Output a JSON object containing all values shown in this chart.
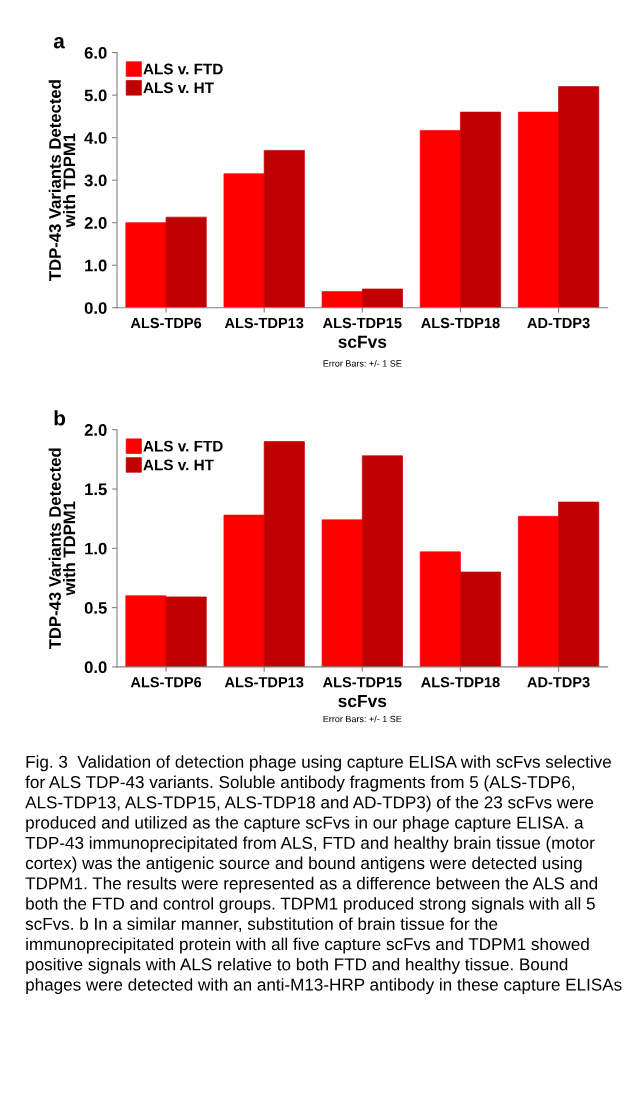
{
  "chart_data": [
    {
      "type": "bar",
      "title": "a",
      "xlabel": "scFvs",
      "ylabel": "TDP-43 Variants Detected\nwith TDPM1",
      "categories": [
        "ALS-TDP6",
        "ALS-TDP13",
        "ALS-TDP15",
        "ALS-TDP18",
        "AD-TDP3"
      ],
      "series": [
        {
          "name": "ALS v. FTD",
          "color": "#ff0000",
          "values": [
            2.0,
            3.15,
            0.38,
            4.17,
            4.6
          ]
        },
        {
          "name": "ALS v. HT",
          "color": "#c00000",
          "values": [
            2.13,
            3.7,
            0.44,
            4.6,
            5.2
          ]
        }
      ],
      "ylim": [
        0,
        6
      ],
      "yticks": [
        {
          "value": 0,
          "label": "0.0"
        },
        {
          "value": 1,
          "label": "1.0"
        },
        {
          "value": 2,
          "label": "2.0"
        },
        {
          "value": 3,
          "label": "3.0"
        },
        {
          "value": 4,
          "label": "4.0"
        },
        {
          "value": 5,
          "label": "5.0"
        },
        {
          "value": 6,
          "label": "6.0"
        }
      ],
      "legend": "top left",
      "grid": false,
      "annotations": [
        "Error Bars: +/- 1 SE"
      ]
    },
    {
      "type": "bar",
      "title": "b",
      "xlabel": "scFvs",
      "ylabel": "TDP-43 Variants Detected\nwith TDPM1",
      "categories": [
        "ALS-TDP6",
        "ALS-TDP13",
        "ALS-TDP15",
        "ALS-TDP18",
        "AD-TDP3"
      ],
      "series": [
        {
          "name": "ALS v. FTD",
          "color": "#ff0000",
          "values": [
            0.6,
            1.28,
            1.24,
            0.97,
            1.27
          ]
        },
        {
          "name": "ALS v. HT",
          "color": "#c00000",
          "values": [
            0.59,
            1.9,
            1.78,
            0.8,
            1.39
          ]
        }
      ],
      "ylim": [
        0,
        2
      ],
      "yticks": [
        {
          "value": 0,
          "label": "0.0"
        },
        {
          "value": 0.5,
          "label": "0.5"
        },
        {
          "value": 1,
          "label": "1.0"
        },
        {
          "value": 1.5,
          "label": "1.5"
        },
        {
          "value": 2,
          "label": "2.0"
        }
      ],
      "legend": "top left",
      "grid": false,
      "annotations": [
        "Error Bars: +/- 1 SE",
        "Fig. 3  Validation of detection phage using capture ELISA with scFvs selective for ALS TDP-43 variants. Soluble antibody fragments from 5 (ALS-TDP6, ALS-TDP13, ALS-TDP15, ALS-TDP18 and AD-TDP3) of the 23 scFvs were produced and utilized as the capture scFvs in our phage capture ELISA. a TDP-43 immunoprecipitated from ALS, FTD and healthy brain tissue (motor cortex) was the antigenic source and bound antigens were detected using TDPM1. The results were represented as a difference between the ALS and both the FTD and control groups. TDPM1 produced strong signals with all 5 scFvs. b In a similar manner, substitution of brain tissue for the immunoprecipitated protein with all five capture scFvs and TDPM1 showed positive signals with ALS relative to both FTD and healthy tissue. Bound phages were detected with an anti-M13-HRP antibody in these capture ELISAs"
      ]
    }
  ]
}
